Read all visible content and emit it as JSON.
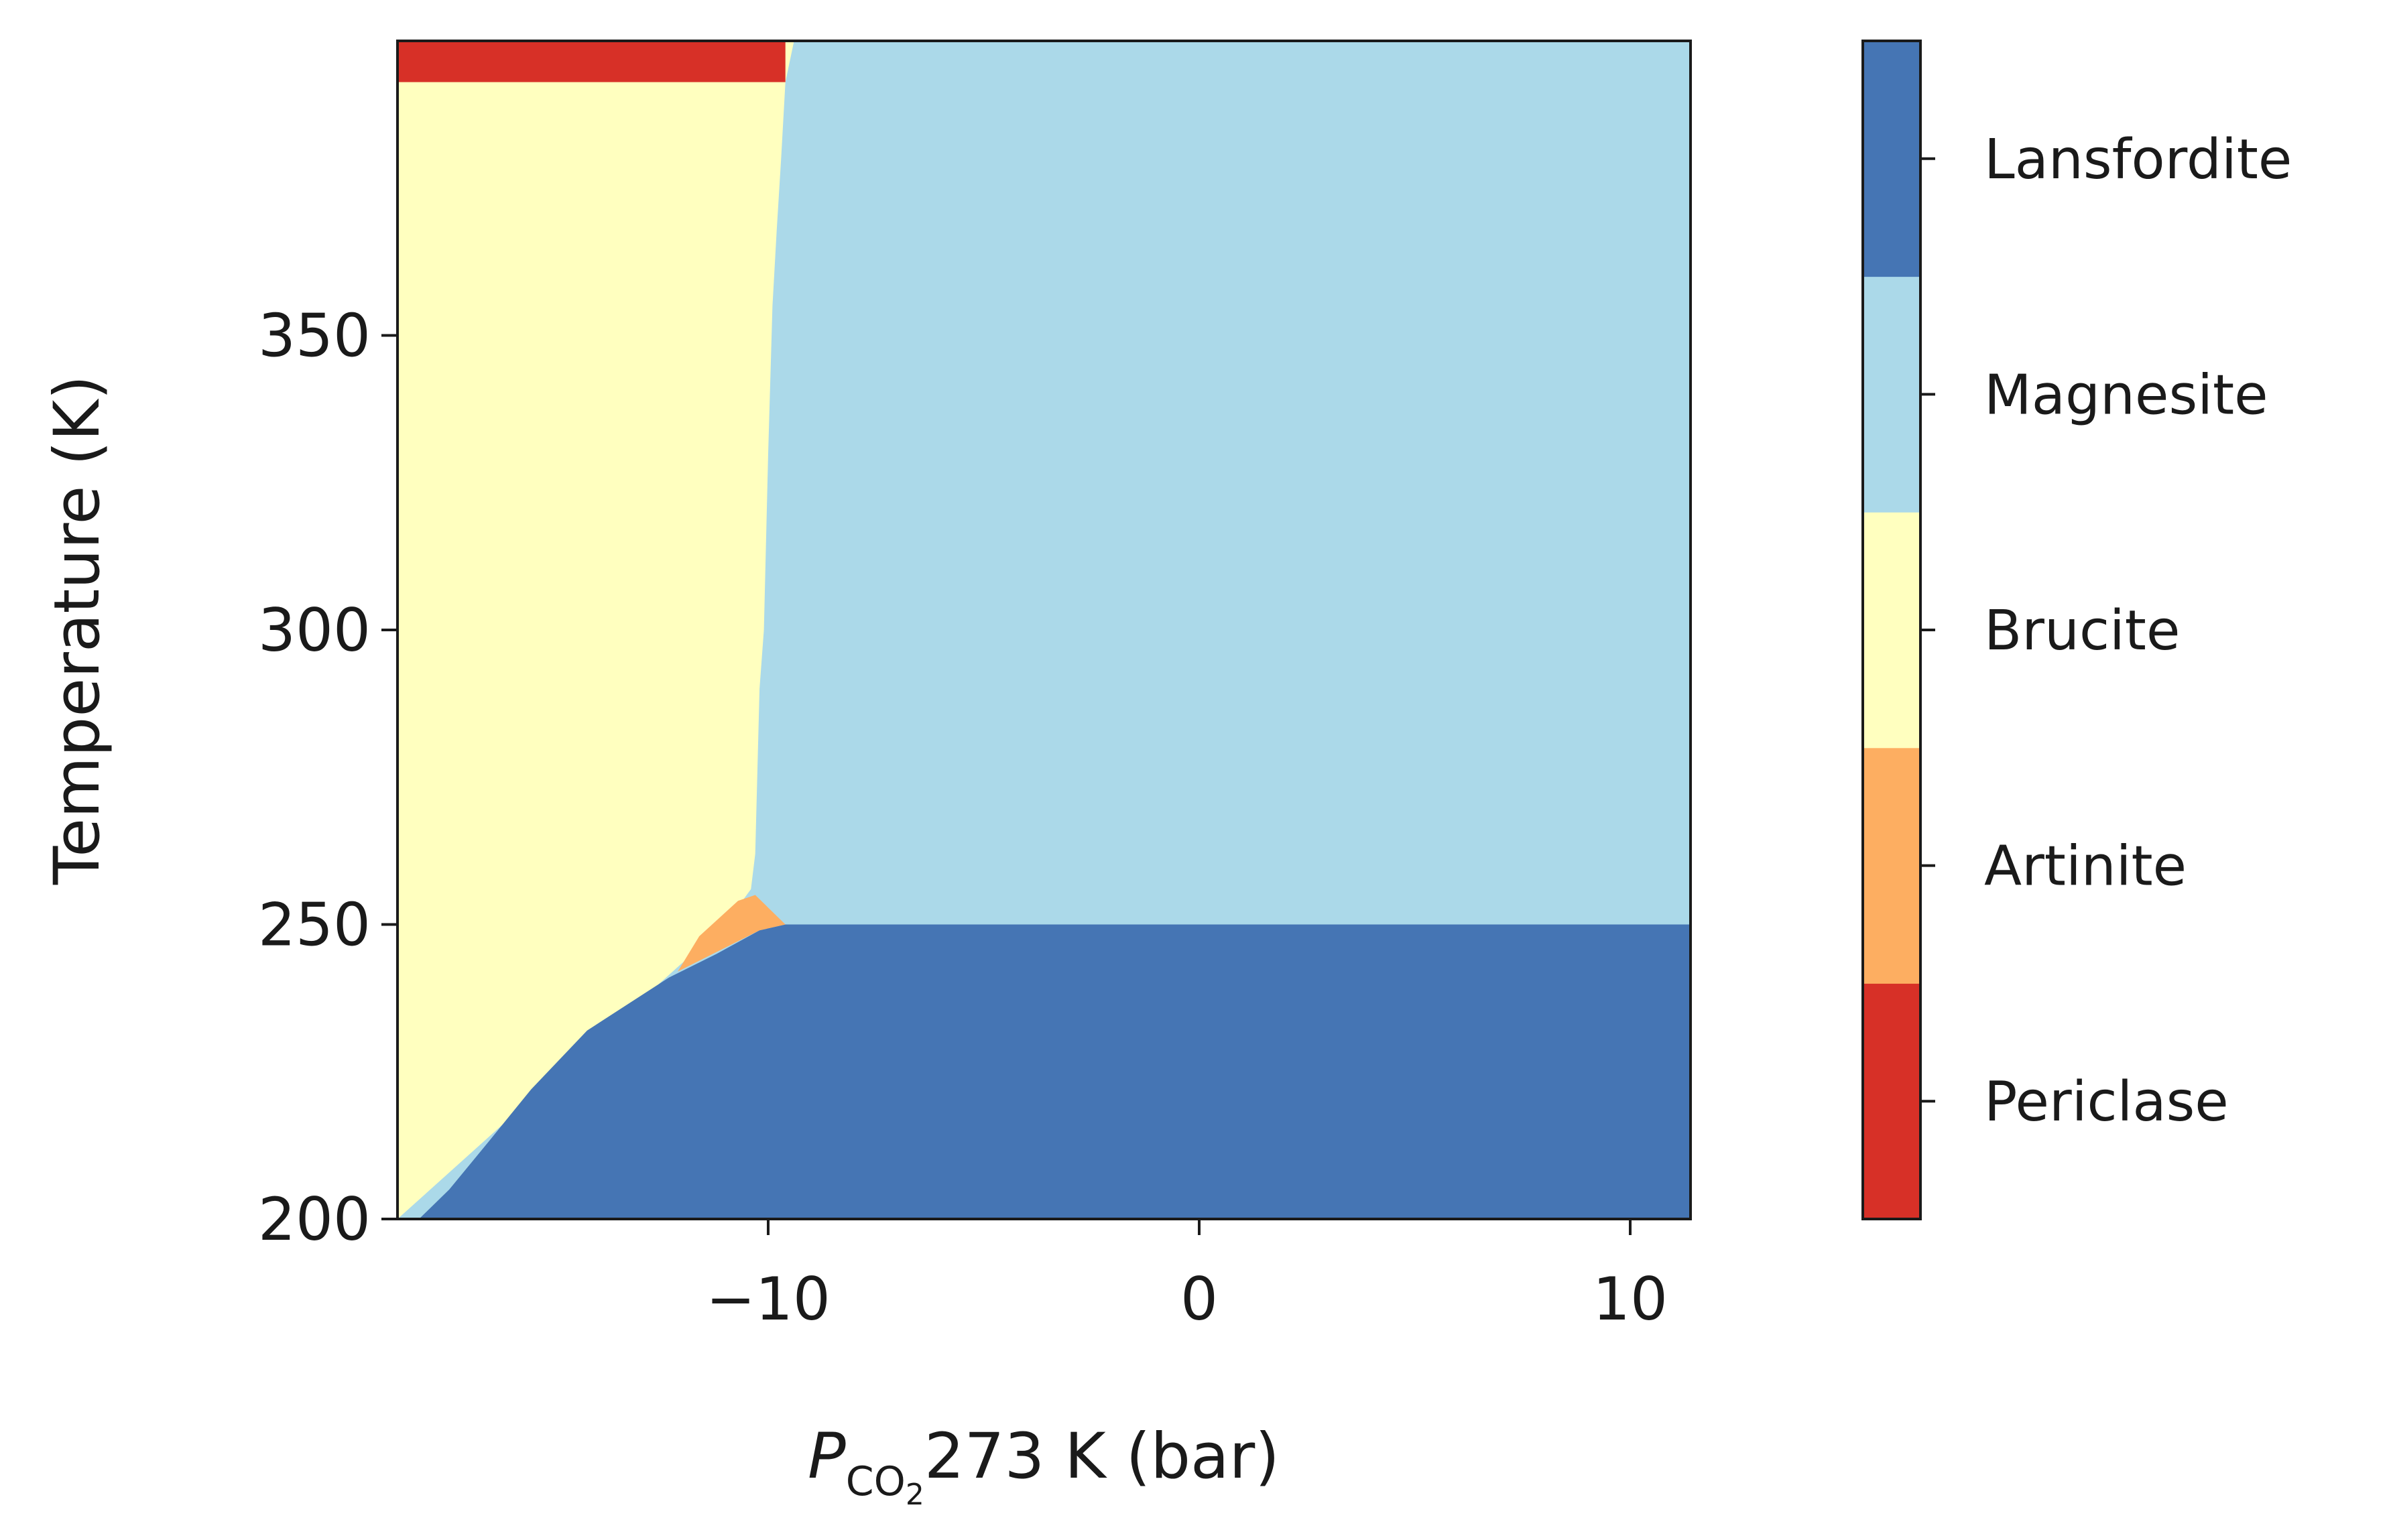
{
  "chart_data": {
    "type": "heatmap",
    "title": "",
    "xlabel": {
      "symbol": "P",
      "subscript": "CO",
      "sub_subscript": "2",
      "rest": "273 K (bar)"
    },
    "ylabel": "Temperature (K)",
    "xlim": [
      -18.6,
      11.4
    ],
    "ylim": [
      200,
      400
    ],
    "xticks": [
      {
        "value": -10,
        "label": "−10"
      },
      {
        "value": 0,
        "label": "0"
      },
      {
        "value": 10,
        "label": "10"
      }
    ],
    "yticks": [
      {
        "value": 200,
        "label": "200"
      },
      {
        "value": 250,
        "label": "250"
      },
      {
        "value": 300,
        "label": "300"
      },
      {
        "value": 350,
        "label": "350"
      }
    ],
    "phases": [
      {
        "id": "periclase",
        "name": "Periclase",
        "color": "#d73027"
      },
      {
        "id": "artinite",
        "name": "Artinite",
        "color": "#fdae61"
      },
      {
        "id": "brucite",
        "name": "Brucite",
        "color": "#ffffbf"
      },
      {
        "id": "magnesite",
        "name": "Magnesite",
        "color": "#abd9e9"
      },
      {
        "id": "lansfordite",
        "name": "Lansfordite",
        "color": "#4575b4"
      }
    ],
    "boundaries": {
      "periclase_brucite_T": 393,
      "brucite_magnesite": [
        [
          -9.4,
          400
        ],
        [
          -9.6,
          393
        ],
        [
          -9.7,
          380
        ],
        [
          -9.8,
          368
        ],
        [
          -9.9,
          355
        ],
        [
          -10.0,
          330
        ],
        [
          -10.1,
          300
        ],
        [
          -10.2,
          290
        ],
        [
          -10.3,
          262
        ],
        [
          -10.4,
          256
        ]
      ],
      "lansfordite_upper": [
        [
          -18.1,
          200
        ],
        [
          -17.4,
          205
        ],
        [
          -16.5,
          213
        ],
        [
          -15.5,
          222
        ],
        [
          -14.2,
          232
        ],
        [
          -12.3,
          241
        ],
        [
          -11.2,
          245
        ],
        [
          -10.2,
          249
        ],
        [
          -9.6,
          250
        ],
        [
          11.4,
          250
        ]
      ],
      "artinite_region": [
        [
          -12.1,
          242
        ],
        [
          -10.2,
          249
        ],
        [
          -9.6,
          250
        ],
        [
          -10.3,
          255
        ],
        [
          -10.7,
          254
        ],
        [
          -11.6,
          248
        ]
      ]
    },
    "colorbar": {
      "orientation": "vertical",
      "location": "right",
      "order_bottom_to_top": [
        "periclase",
        "artinite",
        "brucite",
        "magnesite",
        "lansfordite"
      ]
    },
    "grid": false,
    "legend": "colorbar-right"
  }
}
